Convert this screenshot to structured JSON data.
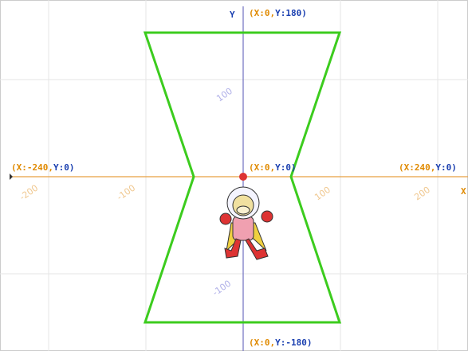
{
  "stage": {
    "axis_labels": {
      "x": "X",
      "y": "Y"
    },
    "points": [
      {
        "x": "(X:0,",
        "y": "Y:180)"
      },
      {
        "x": "(X:-240,",
        "y": "Y:0)"
      },
      {
        "x": "(X:0,",
        "y": "Y:0)"
      },
      {
        "x": "(X:240,",
        "y": "Y:0)"
      },
      {
        "x": "(X:0,",
        "y": "Y:-180)"
      }
    ],
    "x_ticks": [
      "-200",
      "-100",
      "100",
      "200"
    ],
    "y_ticks": [
      "100",
      "-100"
    ]
  }
}
